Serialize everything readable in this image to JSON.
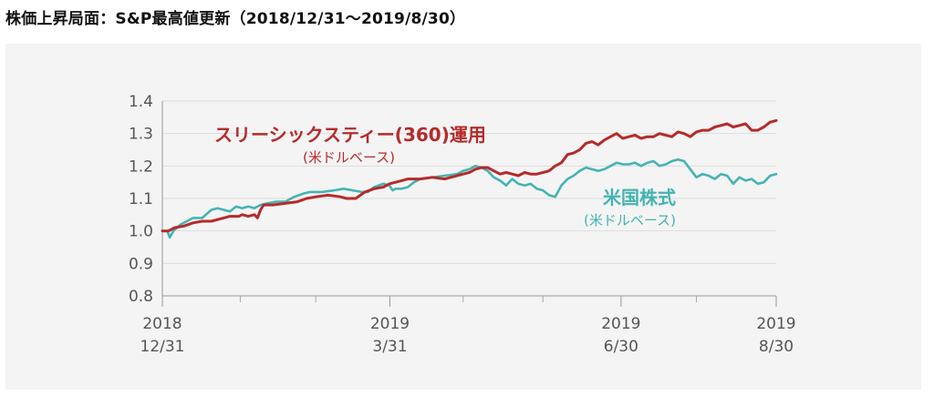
{
  "page": {
    "title": "株価上昇局面：S&P最高値更新（2018/12/31〜2019/8/30）"
  },
  "colors": {
    "fund": "#b52a2a",
    "us_stocks": "#45b3b3",
    "grid": "#dddddd",
    "panel": "#f4f4f4"
  },
  "chart_data": {
    "type": "line",
    "title": "株価上昇局面：S&P最高値更新（2018/12/31〜2019/8/30）",
    "xlabel": "",
    "ylabel": "",
    "ylim": [
      0.8,
      1.4
    ],
    "yticks": [
      "1.4",
      "1.3",
      "1.2",
      "1.1",
      "1.0",
      "0.9",
      "0.8"
    ],
    "xticks": [
      {
        "year": "2018",
        "date": "12/31",
        "t": 0
      },
      {
        "year": "2019",
        "date": "3/31",
        "t": 0.3707
      },
      {
        "year": "2019",
        "date": "6/30",
        "t": 0.7472
      },
      {
        "year": "2019",
        "date": "8/30",
        "t": 1.0
      }
    ],
    "minor_ticks": [
      0.127,
      0.25,
      0.49,
      0.62,
      0.87
    ],
    "grid": true,
    "legend": "inline",
    "series": [
      {
        "name": "スリーシックスティー(360)運用",
        "sub": "(米ドルベース)",
        "color": "#b52a2a",
        "points": [
          [
            0,
            1.0
          ],
          [
            0.01,
            1.0
          ],
          [
            0.02,
            1.01
          ],
          [
            0.035,
            1.015
          ],
          [
            0.05,
            1.025
          ],
          [
            0.065,
            1.03
          ],
          [
            0.08,
            1.03
          ],
          [
            0.09,
            1.035
          ],
          [
            0.1,
            1.04
          ],
          [
            0.11,
            1.045
          ],
          [
            0.125,
            1.045
          ],
          [
            0.13,
            1.05
          ],
          [
            0.14,
            1.045
          ],
          [
            0.15,
            1.05
          ],
          [
            0.155,
            1.04
          ],
          [
            0.16,
            1.065
          ],
          [
            0.165,
            1.08
          ],
          [
            0.18,
            1.08
          ],
          [
            0.2,
            1.085
          ],
          [
            0.22,
            1.09
          ],
          [
            0.235,
            1.1
          ],
          [
            0.25,
            1.105
          ],
          [
            0.27,
            1.11
          ],
          [
            0.29,
            1.105
          ],
          [
            0.3,
            1.1
          ],
          [
            0.315,
            1.1
          ],
          [
            0.33,
            1.12
          ],
          [
            0.345,
            1.13
          ],
          [
            0.36,
            1.135
          ],
          [
            0.37,
            1.145
          ],
          [
            0.38,
            1.15
          ],
          [
            0.39,
            1.155
          ],
          [
            0.4,
            1.16
          ],
          [
            0.42,
            1.16
          ],
          [
            0.44,
            1.165
          ],
          [
            0.46,
            1.16
          ],
          [
            0.47,
            1.165
          ],
          [
            0.48,
            1.17
          ],
          [
            0.49,
            1.175
          ],
          [
            0.5,
            1.18
          ],
          [
            0.51,
            1.19
          ],
          [
            0.52,
            1.195
          ],
          [
            0.53,
            1.195
          ],
          [
            0.54,
            1.185
          ],
          [
            0.55,
            1.175
          ],
          [
            0.56,
            1.18
          ],
          [
            0.57,
            1.175
          ],
          [
            0.58,
            1.17
          ],
          [
            0.59,
            1.18
          ],
          [
            0.6,
            1.175
          ],
          [
            0.61,
            1.175
          ],
          [
            0.62,
            1.18
          ],
          [
            0.63,
            1.185
          ],
          [
            0.64,
            1.2
          ],
          [
            0.65,
            1.21
          ],
          [
            0.66,
            1.235
          ],
          [
            0.67,
            1.24
          ],
          [
            0.68,
            1.25
          ],
          [
            0.69,
            1.27
          ],
          [
            0.7,
            1.275
          ],
          [
            0.71,
            1.265
          ],
          [
            0.72,
            1.28
          ],
          [
            0.73,
            1.29
          ],
          [
            0.74,
            1.3
          ],
          [
            0.75,
            1.285
          ],
          [
            0.76,
            1.29
          ],
          [
            0.77,
            1.295
          ],
          [
            0.78,
            1.285
          ],
          [
            0.79,
            1.29
          ],
          [
            0.8,
            1.29
          ],
          [
            0.81,
            1.3
          ],
          [
            0.82,
            1.295
          ],
          [
            0.83,
            1.29
          ],
          [
            0.84,
            1.305
          ],
          [
            0.85,
            1.3
          ],
          [
            0.86,
            1.29
          ],
          [
            0.87,
            1.305
          ],
          [
            0.88,
            1.31
          ],
          [
            0.89,
            1.31
          ],
          [
            0.9,
            1.32
          ],
          [
            0.91,
            1.325
          ],
          [
            0.92,
            1.33
          ],
          [
            0.93,
            1.32
          ],
          [
            0.94,
            1.325
          ],
          [
            0.95,
            1.33
          ],
          [
            0.96,
            1.31
          ],
          [
            0.97,
            1.31
          ],
          [
            0.98,
            1.32
          ],
          [
            0.99,
            1.335
          ],
          [
            1.0,
            1.34
          ]
        ]
      },
      {
        "name": "米国株式",
        "sub": "(米ドルベース)",
        "color": "#45b3b3",
        "points": [
          [
            0,
            1.0
          ],
          [
            0.008,
            1.0
          ],
          [
            0.012,
            0.98
          ],
          [
            0.018,
            1.0
          ],
          [
            0.03,
            1.02
          ],
          [
            0.04,
            1.03
          ],
          [
            0.05,
            1.04
          ],
          [
            0.065,
            1.04
          ],
          [
            0.08,
            1.065
          ],
          [
            0.09,
            1.07
          ],
          [
            0.1,
            1.065
          ],
          [
            0.11,
            1.06
          ],
          [
            0.12,
            1.075
          ],
          [
            0.13,
            1.07
          ],
          [
            0.14,
            1.075
          ],
          [
            0.15,
            1.07
          ],
          [
            0.16,
            1.08
          ],
          [
            0.17,
            1.085
          ],
          [
            0.185,
            1.09
          ],
          [
            0.2,
            1.09
          ],
          [
            0.215,
            1.105
          ],
          [
            0.23,
            1.115
          ],
          [
            0.24,
            1.12
          ],
          [
            0.25,
            1.12
          ],
          [
            0.26,
            1.12
          ],
          [
            0.28,
            1.125
          ],
          [
            0.295,
            1.13
          ],
          [
            0.31,
            1.125
          ],
          [
            0.325,
            1.12
          ],
          [
            0.335,
            1.12
          ],
          [
            0.345,
            1.135
          ],
          [
            0.36,
            1.145
          ],
          [
            0.37,
            1.14
          ],
          [
            0.375,
            1.125
          ],
          [
            0.38,
            1.13
          ],
          [
            0.39,
            1.13
          ],
          [
            0.4,
            1.135
          ],
          [
            0.41,
            1.15
          ],
          [
            0.42,
            1.16
          ],
          [
            0.44,
            1.165
          ],
          [
            0.46,
            1.17
          ],
          [
            0.48,
            1.175
          ],
          [
            0.49,
            1.185
          ],
          [
            0.5,
            1.19
          ],
          [
            0.51,
            1.2
          ],
          [
            0.52,
            1.195
          ],
          [
            0.53,
            1.185
          ],
          [
            0.54,
            1.165
          ],
          [
            0.55,
            1.155
          ],
          [
            0.56,
            1.14
          ],
          [
            0.57,
            1.16
          ],
          [
            0.58,
            1.145
          ],
          [
            0.59,
            1.14
          ],
          [
            0.6,
            1.145
          ],
          [
            0.61,
            1.13
          ],
          [
            0.62,
            1.125
          ],
          [
            0.63,
            1.11
          ],
          [
            0.64,
            1.105
          ],
          [
            0.65,
            1.14
          ],
          [
            0.66,
            1.16
          ],
          [
            0.67,
            1.17
          ],
          [
            0.68,
            1.185
          ],
          [
            0.69,
            1.195
          ],
          [
            0.7,
            1.19
          ],
          [
            0.71,
            1.185
          ],
          [
            0.72,
            1.19
          ],
          [
            0.73,
            1.2
          ],
          [
            0.74,
            1.21
          ],
          [
            0.75,
            1.205
          ],
          [
            0.76,
            1.205
          ],
          [
            0.77,
            1.21
          ],
          [
            0.78,
            1.2
          ],
          [
            0.79,
            1.21
          ],
          [
            0.8,
            1.215
          ],
          [
            0.81,
            1.2
          ],
          [
            0.82,
            1.205
          ],
          [
            0.83,
            1.215
          ],
          [
            0.84,
            1.22
          ],
          [
            0.85,
            1.215
          ],
          [
            0.86,
            1.19
          ],
          [
            0.87,
            1.165
          ],
          [
            0.88,
            1.175
          ],
          [
            0.89,
            1.17
          ],
          [
            0.9,
            1.16
          ],
          [
            0.91,
            1.175
          ],
          [
            0.92,
            1.17
          ],
          [
            0.93,
            1.145
          ],
          [
            0.94,
            1.165
          ],
          [
            0.95,
            1.155
          ],
          [
            0.96,
            1.16
          ],
          [
            0.97,
            1.145
          ],
          [
            0.98,
            1.15
          ],
          [
            0.99,
            1.17
          ],
          [
            1.0,
            1.175
          ]
        ]
      }
    ]
  }
}
